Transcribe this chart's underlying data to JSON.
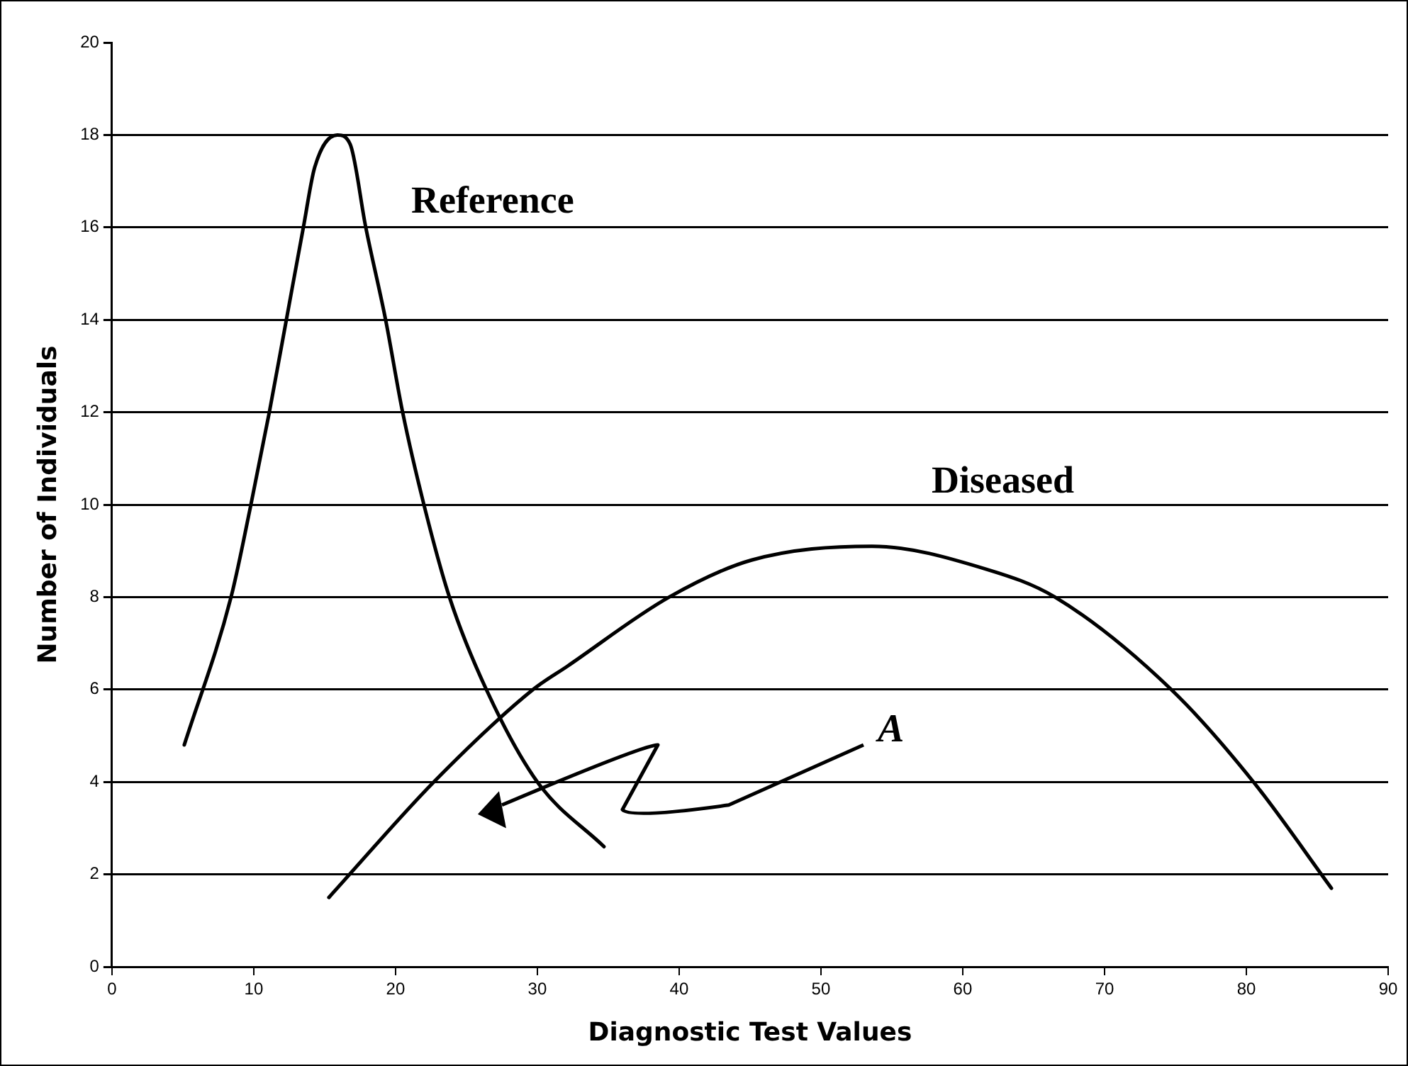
{
  "chart_data": {
    "type": "line",
    "xlabel": "Diagnostic Test Values",
    "ylabel": "Number of Individuals",
    "xlim": [
      0,
      90
    ],
    "xticks": [
      0,
      10,
      20,
      30,
      40,
      50,
      60,
      70,
      80,
      90
    ],
    "ylim": [
      0,
      20
    ],
    "yticks": [
      0,
      2,
      4,
      6,
      8,
      10,
      12,
      14,
      16,
      18,
      20
    ],
    "grid": "y",
    "legend": false,
    "marker": "none",
    "line_style": "solid",
    "series": [
      {
        "name": "Reference",
        "color": "#000000",
        "x": [
          5.1,
          8.4,
          9.8,
          11.1,
          12.3,
          13.5,
          14.3,
          15.9,
          16.8,
          17.9,
          19.3,
          20.5,
          22,
          23.8,
          26.4,
          30,
          34.7
        ],
        "values": [
          4.8,
          8,
          10,
          12,
          14,
          16,
          17.3,
          18,
          17.8,
          16,
          14,
          12,
          10,
          8,
          6,
          4,
          2.6
        ]
      },
      {
        "name": "Diseased",
        "color": "#000000",
        "x": [
          15.3,
          22.7,
          29.7,
          32.1,
          39.3,
          45.1,
          53.6,
          61.7,
          66.5,
          74.7,
          80.5,
          86
        ],
        "values": [
          1.5,
          4,
          6,
          6.5,
          8,
          8.8,
          9.1,
          8.6,
          8,
          6,
          4,
          1.7
        ]
      }
    ],
    "annotations": [
      "A"
    ]
  }
}
